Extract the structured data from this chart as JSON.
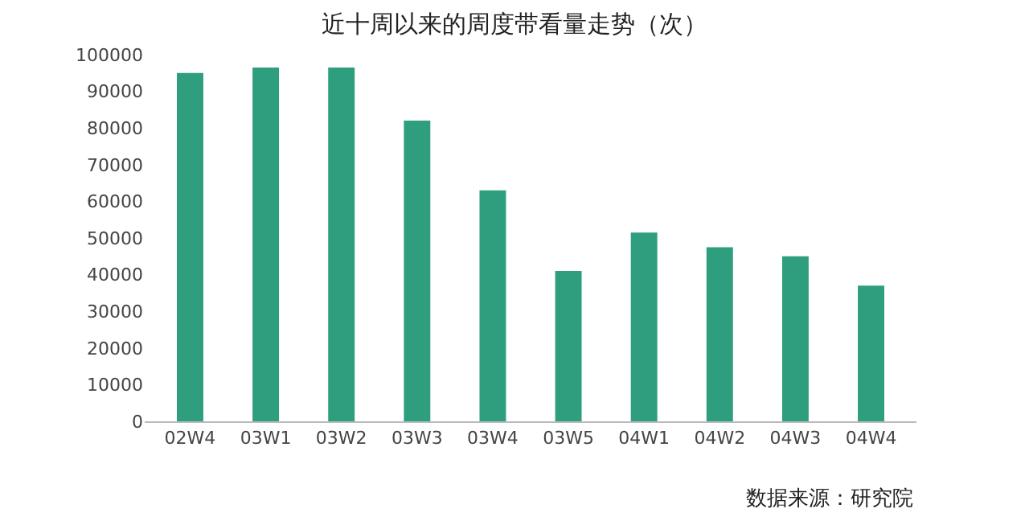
{
  "chart_data": {
    "type": "bar",
    "title": "近十周以来的周度带看量走势（次）",
    "categories": [
      "02W4",
      "03W1",
      "03W2",
      "03W3",
      "03W4",
      "03W5",
      "04W1",
      "04W2",
      "04W3",
      "04W4"
    ],
    "values": [
      95000,
      96500,
      96500,
      82000,
      63000,
      41000,
      51500,
      47500,
      45000,
      37000
    ],
    "color": "#2e9e7f",
    "ylim": [
      0,
      100000
    ],
    "yticks": [
      0,
      10000,
      20000,
      30000,
      40000,
      50000,
      60000,
      70000,
      80000,
      90000,
      100000
    ],
    "grid": false,
    "annotations": [
      "数据来源：研究院"
    ]
  }
}
